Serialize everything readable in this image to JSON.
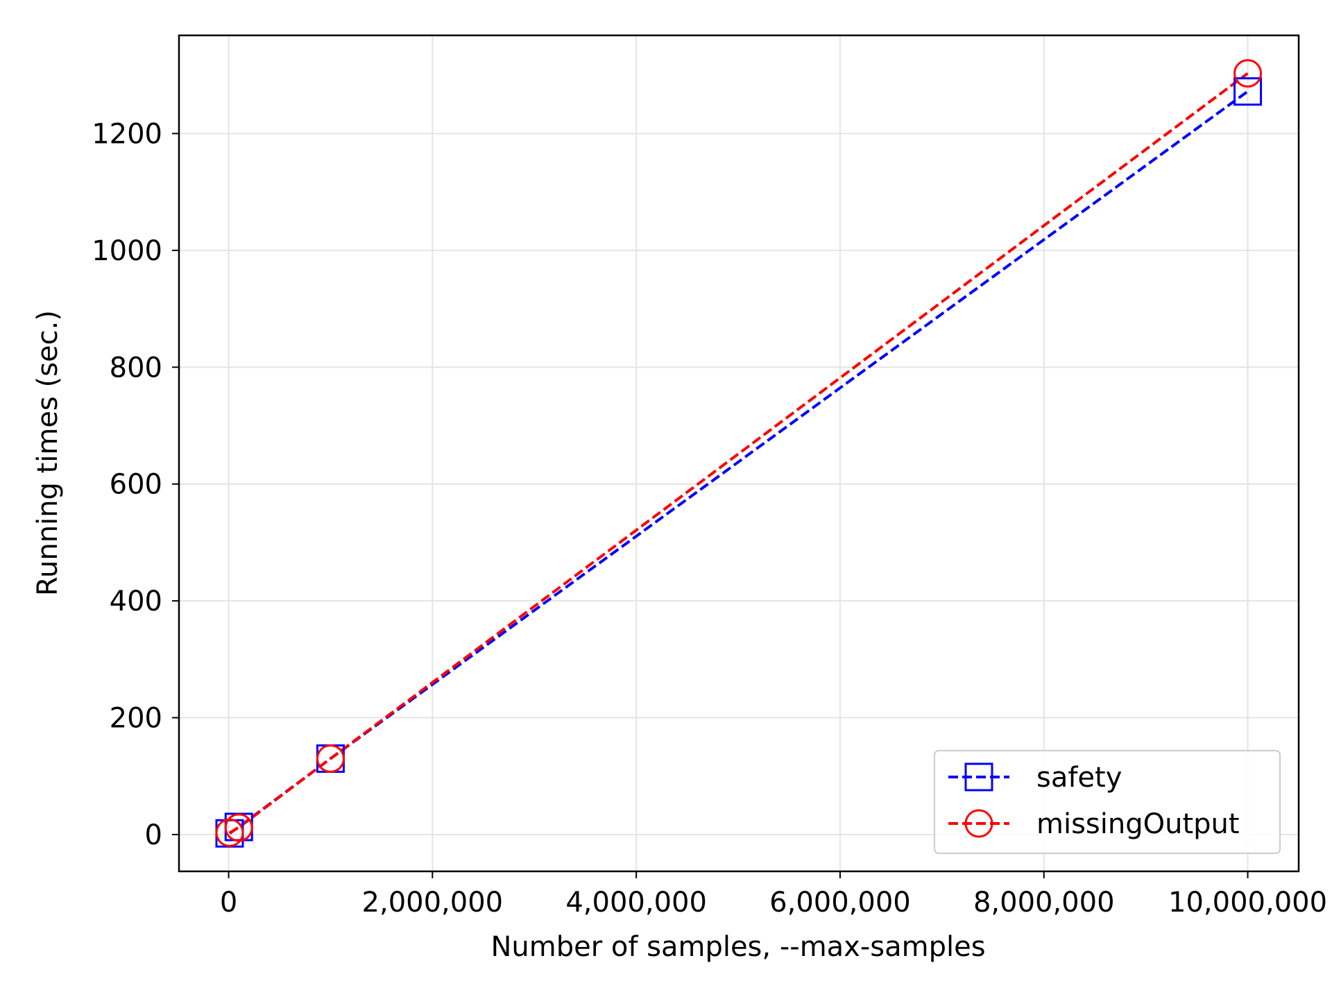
{
  "chart_data": {
    "type": "line",
    "title": "",
    "xlabel": "Number of samples, --max-samples",
    "ylabel": "Running times (sec.)",
    "xlim": [
      -487000,
      10500000
    ],
    "ylim": [
      -63,
      1368
    ],
    "xticks": [
      0,
      2000000,
      4000000,
      6000000,
      8000000,
      10000000
    ],
    "xtick_labels": [
      "0",
      "2,000,000",
      "4,000,000",
      "6,000,000",
      "8,000,000",
      "10,000,000"
    ],
    "yticks": [
      0,
      200,
      400,
      600,
      800,
      1000,
      1200
    ],
    "ytick_labels": [
      "0",
      "200",
      "400",
      "600",
      "800",
      "1000",
      "1200"
    ],
    "grid": true,
    "legend_position": "lower-right",
    "series": [
      {
        "name": "safety",
        "color": "#0000ff",
        "marker": "square",
        "linestyle": "dashed",
        "x": [
          10000,
          100000,
          1000000,
          10000000
        ],
        "y": [
          2,
          13,
          130,
          1272
        ]
      },
      {
        "name": "missingOutput",
        "color": "#ff0000",
        "marker": "circle",
        "linestyle": "dashed",
        "x": [
          10000,
          100000,
          1000000,
          10000000
        ],
        "y": [
          3,
          12,
          130,
          1303
        ]
      }
    ]
  }
}
